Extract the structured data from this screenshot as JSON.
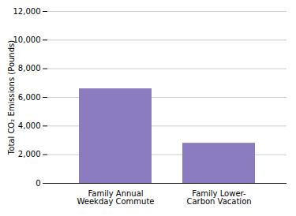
{
  "chart_data": {
    "type": "bar",
    "categories": [
      "Family Annual\nWeekday Commute",
      "Family Lower-\nCarbon Vacation"
    ],
    "values": [
      6600,
      2800
    ],
    "color": "#8B7BBF",
    "ylabel": "Total CO₂ Emissions (Pounds)",
    "ylim": [
      0,
      12000
    ],
    "yticks": [
      0,
      {
        "value": 2000,
        "label": "2,000"
      },
      {
        "value": 4000,
        "label": "4,000"
      },
      {
        "value": 6000,
        "label": "6,000"
      },
      {
        "value": 8000,
        "label": "8,000"
      },
      {
        "value": 10000,
        "label": "10,000"
      },
      {
        "value": 12000,
        "label": "12,000"
      }
    ],
    "grid": true
  }
}
